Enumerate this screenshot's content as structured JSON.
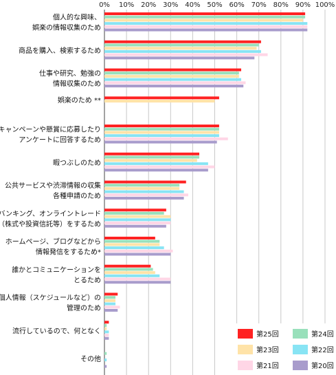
{
  "chart_data": {
    "type": "bar",
    "orientation": "horizontal",
    "x_ticks": [
      "0%",
      "10%",
      "20%",
      "30%",
      "40%",
      "50%",
      "60%",
      "70%",
      "80%",
      "90%",
      "100%"
    ],
    "xlim": [
      0,
      100
    ],
    "grid": true,
    "legend_position": "bottom-right",
    "categories": [
      [
        "個人的な興味、",
        "娯楽の情報収集のため"
      ],
      [
        "商品を購入、検索するため"
      ],
      [
        "仕事や研究、勉強の",
        "情報収集のため"
      ],
      [
        "娯楽のため **"
      ],
      [
        "キャンペーンや懸賞に応募したり",
        "アンケートに回答するため"
      ],
      [
        "暇つぶしのため"
      ],
      [
        "公共サービスや渋滞情報の収集",
        "各種申請のため"
      ],
      [
        "ネットバンキング、オンライントレード",
        "（株式や投資信託等）をするため"
      ],
      [
        "ホームページ、ブログなどから",
        "情報発信をするため*"
      ],
      [
        "誰かとコミュニケーションを",
        "とるため"
      ],
      [
        "個人情報（スケジュールなど）の",
        "管理のため"
      ],
      [
        "流行しているので、何となく"
      ],
      [
        "その他"
      ]
    ],
    "series": [
      {
        "name": "第25回",
        "color": "#ff2222",
        "values": [
          91,
          71,
          62,
          52,
          52,
          43,
          37,
          28,
          23,
          21,
          6,
          2,
          0
        ]
      },
      {
        "name": "第24回",
        "color": "#99e0bb",
        "values": [
          91,
          70,
          61,
          null,
          52,
          43,
          34,
          27,
          25,
          22,
          5,
          1,
          1
        ]
      },
      {
        "name": "第23回",
        "color": "#ffe3a8",
        "values": [
          90,
          69,
          61,
          50,
          52,
          42,
          34,
          30,
          25,
          23,
          5,
          1,
          0
        ]
      },
      {
        "name": "第22回",
        "color": "#88e4f4",
        "values": [
          92,
          71,
          62,
          null,
          52,
          47,
          36,
          30,
          27,
          25,
          5,
          2,
          1
        ]
      },
      {
        "name": "第21回",
        "color": "#ffd6e6",
        "values": [
          92,
          74,
          64,
          null,
          56,
          50,
          38,
          30,
          31,
          30,
          7,
          2,
          0
        ]
      },
      {
        "name": "第20回",
        "color": "#a89ccc",
        "values": [
          92,
          68,
          63,
          null,
          51,
          47,
          36,
          28,
          30,
          30,
          6,
          2,
          1
        ]
      }
    ],
    "legend": [
      {
        "name": "第25回",
        "color": "#ff2222"
      },
      {
        "name": "第24回",
        "color": "#99e0bb"
      },
      {
        "name": "第23回",
        "color": "#ffe3a8"
      },
      {
        "name": "第22回",
        "color": "#88e4f4"
      },
      {
        "name": "第21回",
        "color": "#ffd6e6"
      },
      {
        "name": "第20回",
        "color": "#a89ccc"
      }
    ],
    "colors": {
      "grid": "#c8c8c8",
      "axis": "#444444"
    }
  }
}
